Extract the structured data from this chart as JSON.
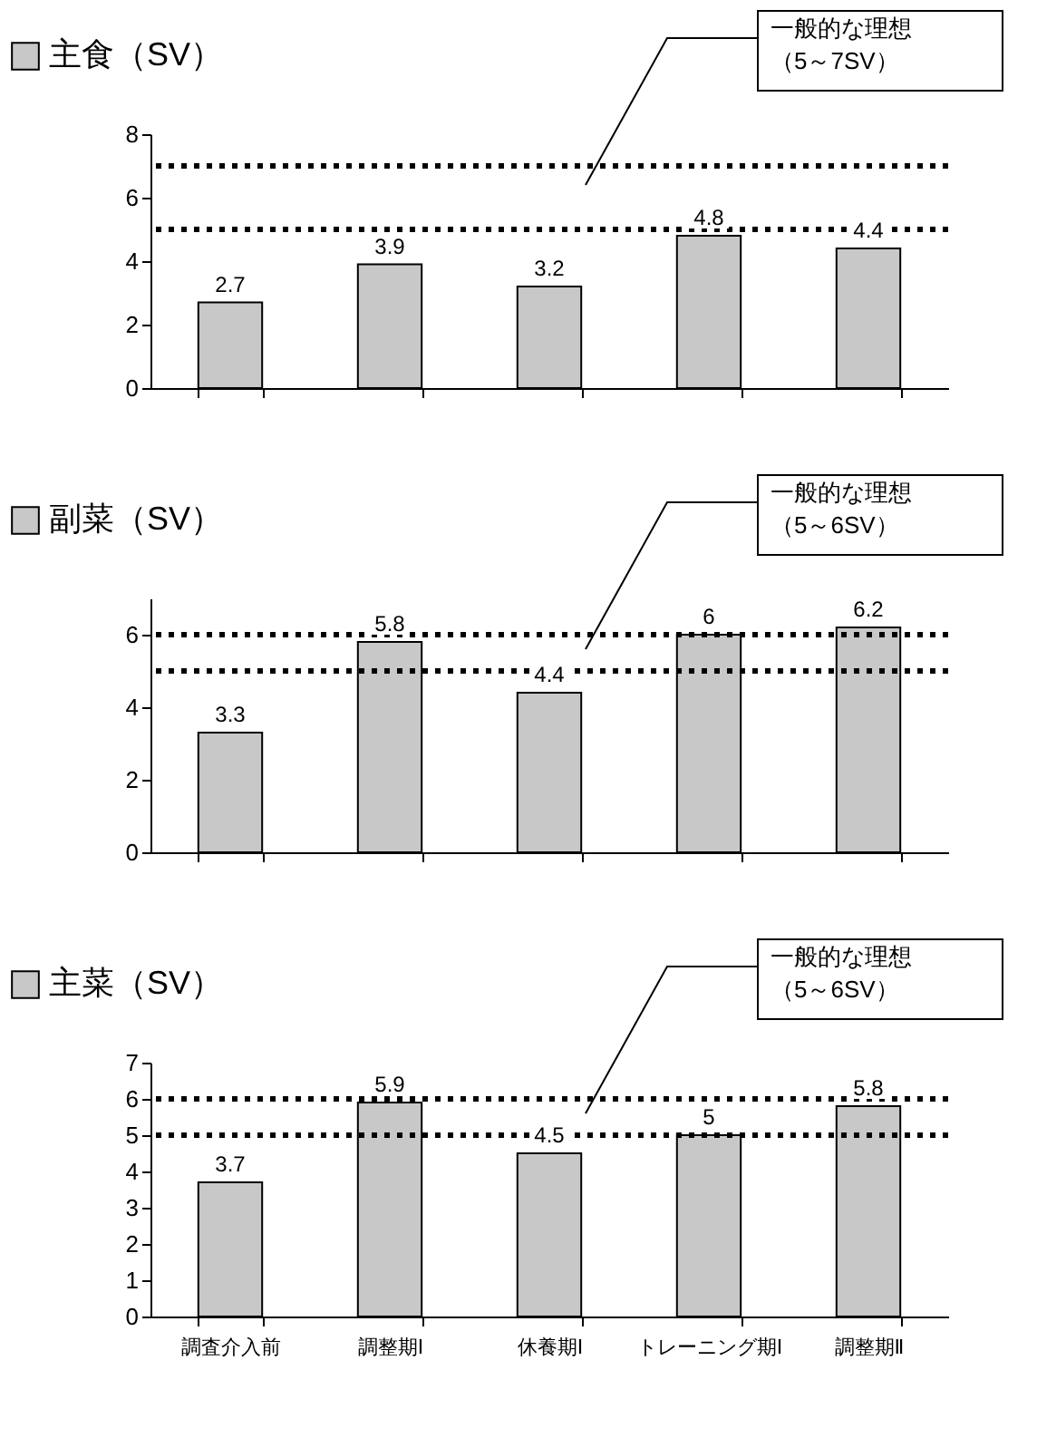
{
  "chart_data": [
    {
      "type": "bar",
      "categories": [
        null,
        null,
        null,
        null,
        null
      ],
      "series": [
        {
          "name": "主食（SV）",
          "color": "#c8c8c8",
          "values": [
            2.7,
            3.9,
            3.2,
            4.8,
            4.4
          ]
        }
      ],
      "ylim": [
        0,
        8
      ],
      "yticks": [
        0,
        2,
        4,
        6,
        8
      ],
      "data_labels": true,
      "legend": "top left",
      "ref_lines": [
        {
          "axis": "y",
          "value": 5,
          "color": "#000000",
          "line_style": "dotted"
        },
        {
          "axis": "y",
          "value": 7,
          "color": "#000000",
          "line_style": "dotted"
        }
      ],
      "annotations": [
        "一般的な理想（5～7SV）"
      ]
    },
    {
      "type": "bar",
      "categories": [
        null,
        null,
        null,
        null,
        null
      ],
      "series": [
        {
          "name": "副菜（SV）",
          "color": "#c8c8c8",
          "values": [
            3.3,
            5.8,
            4.4,
            6,
            6.2
          ]
        }
      ],
      "ylim": [
        0,
        7
      ],
      "yticks": [
        0,
        2,
        4,
        6
      ],
      "data_labels": true,
      "legend": "top left",
      "ref_lines": [
        {
          "axis": "y",
          "value": 5,
          "color": "#000000",
          "line_style": "dotted"
        },
        {
          "axis": "y",
          "value": 6,
          "color": "#000000",
          "line_style": "dotted"
        }
      ],
      "annotations": [
        "一般的な理想（5～6SV）"
      ]
    },
    {
      "type": "bar",
      "categories": [
        "調査介入前",
        "調整期Ⅰ",
        "休養期Ⅰ",
        "トレーニング期Ⅰ",
        "調整期Ⅱ"
      ],
      "series": [
        {
          "name": "主菜（SV）",
          "color": "#c8c8c8",
          "values": [
            3.7,
            5.9,
            4.5,
            5,
            5.8
          ]
        }
      ],
      "ylim": [
        0,
        7
      ],
      "yticks": [
        0,
        1,
        2,
        3,
        4,
        5,
        6,
        7
      ],
      "data_labels": true,
      "legend": "top left",
      "ref_lines": [
        {
          "axis": "y",
          "value": 5,
          "color": "#000000",
          "line_style": "dotted"
        },
        {
          "axis": "y",
          "value": 6,
          "color": "#000000",
          "line_style": "dotted"
        }
      ],
      "annotations": [
        "一般的な理想（5～6SV）"
      ]
    }
  ]
}
